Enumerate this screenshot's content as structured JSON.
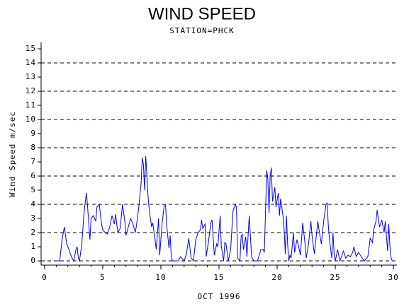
{
  "chart_data": {
    "type": "line",
    "title": "WIND SPEED",
    "subtitle": "STATION=PHCK",
    "y_label": "Wind Speed m/sec",
    "x_label": "OCT 1996",
    "color": "#0000ff",
    "xlim": [
      -0.3,
      30.3
    ],
    "xticks": [
      0,
      5,
      10,
      15,
      20,
      25,
      30
    ],
    "xminorticks": [
      0,
      1,
      2,
      3,
      4,
      5,
      6,
      7,
      8,
      9,
      10,
      11,
      12,
      13,
      14,
      15,
      16,
      17,
      18,
      19,
      20,
      21,
      22,
      23,
      24,
      25,
      26,
      27,
      28,
      29,
      30
    ],
    "ylim": [
      -0.3,
      15.45
    ],
    "yticks": [
      0,
      1,
      2,
      3,
      4,
      5,
      6,
      7,
      8,
      9,
      10,
      11,
      12,
      13,
      14,
      15
    ],
    "grid_lines": [
      0,
      2,
      4,
      6,
      8,
      10,
      12,
      14
    ],
    "grid_style": "dashed",
    "x": [
      1.0,
      1.3,
      1.5,
      1.7,
      1.9,
      2.1,
      2.3,
      2.5,
      2.7,
      2.8,
      2.9,
      3.0,
      3.2,
      3.4,
      3.6,
      3.7,
      3.9,
      4.0,
      4.2,
      4.4,
      4.5,
      4.7,
      4.9,
      5.0,
      5.2,
      5.4,
      5.6,
      5.8,
      6.0,
      6.1,
      6.3,
      6.5,
      6.7,
      6.9,
      7.0,
      7.2,
      7.4,
      7.6,
      7.8,
      7.9,
      8.1,
      8.3,
      8.4,
      8.5,
      8.6,
      8.7,
      8.8,
      8.9,
      9.0,
      9.2,
      9.3,
      9.5,
      9.6,
      9.8,
      9.9,
      10.1,
      10.3,
      10.4,
      10.5,
      10.7,
      10.8,
      10.9,
      11.0,
      11.5,
      11.7,
      12.0,
      12.2,
      12.4,
      12.6,
      12.8,
      13.0,
      13.2,
      13.4,
      13.5,
      13.6,
      13.8,
      13.9,
      14.1,
      14.3,
      14.4,
      14.6,
      14.8,
      14.9,
      15.1,
      15.2,
      15.4,
      15.5,
      15.6,
      15.8,
      16.0,
      16.2,
      16.4,
      16.5,
      16.6,
      16.8,
      16.9,
      17.0,
      17.1,
      17.3,
      17.4,
      17.6,
      17.8,
      18.0,
      18.3,
      18.5,
      18.6,
      18.8,
      18.9,
      19.0,
      19.1,
      19.2,
      19.3,
      19.4,
      19.5,
      19.6,
      19.8,
      19.9,
      20.1,
      20.2,
      20.3,
      20.5,
      20.6,
      20.7,
      20.8,
      20.9,
      21.0,
      21.1,
      21.2,
      21.4,
      21.5,
      21.7,
      21.8,
      22.0,
      22.2,
      22.4,
      22.5,
      22.7,
      22.9,
      23.0,
      23.2,
      23.5,
      23.6,
      23.8,
      24.0,
      24.2,
      24.3,
      24.4,
      24.5,
      24.7,
      24.8,
      24.9,
      25.0,
      25.2,
      25.4,
      25.7,
      25.9,
      26.1,
      26.3,
      26.5,
      26.6,
      26.8,
      27.0,
      27.3,
      27.5,
      27.8,
      28.0,
      28.2,
      28.3,
      28.5,
      28.6,
      28.8,
      29.0,
      29.2,
      29.3,
      29.5,
      29.6,
      29.7,
      29.8,
      29.9,
      30.0
    ],
    "values": [
      0,
      0,
      1.5,
      2.4,
      1.2,
      0.8,
      0.3,
      0,
      0.8,
      1.0,
      0.2,
      0,
      1.2,
      3.5,
      4.8,
      3.8,
      1.5,
      3,
      3.2,
      2.8,
      3.8,
      4.0,
      2.6,
      2.2,
      2.0,
      1.9,
      2.4,
      3.2,
      2.6,
      3.3,
      2.0,
      2.3,
      4.0,
      2.8,
      1.8,
      2.4,
      3.0,
      2.6,
      2.0,
      2.5,
      3.8,
      5.5,
      7.3,
      6.8,
      5.0,
      7.4,
      6.0,
      4.5,
      3.6,
      2.4,
      2.7,
      1.5,
      0.8,
      3.0,
      0.4,
      2.6,
      4.0,
      4.0,
      2.5,
      0.9,
      1.8,
      0.2,
      0,
      0,
      0.3,
      0,
      0.5,
      1.6,
      0.2,
      0,
      1.5,
      2.0,
      2.2,
      2.9,
      2.3,
      2.6,
      0.3,
      1.4,
      2.7,
      2.9,
      0.4,
      1.2,
      1.0,
      3.2,
      1.0,
      0,
      1.3,
      1.2,
      0,
      0.8,
      3.5,
      4.0,
      3.8,
      0.2,
      0,
      1.7,
      1.9,
      0.8,
      1.7,
      0.3,
      3.2,
      0.3,
      0,
      0,
      0.5,
      0.8,
      0.8,
      0.6,
      3.5,
      6.4,
      5.8,
      3.4,
      6.0,
      6.6,
      4.2,
      5.2,
      3.8,
      4.8,
      3.2,
      4.4,
      3.2,
      2.2,
      0.5,
      3.2,
      1.2,
      0,
      0.4,
      0.2,
      2.0,
      0.6,
      1.5,
      1.2,
      0.4,
      2.7,
      1.2,
      0.2,
      1.2,
      2.8,
      1.8,
      0.5,
      2.8,
      2.2,
      1.2,
      2.8,
      4.0,
      4.1,
      2.5,
      1.5,
      0.2,
      2.0,
      0.5,
      0,
      0.8,
      0,
      0.7,
      0.2,
      0.4,
      0.3,
      0.6,
      1.0,
      0.3,
      0.6,
      0.2,
      0,
      0.3,
      1.6,
      1.3,
      2.2,
      2.8,
      3.6,
      2.4,
      2.9,
      2.0,
      2.8,
      0.7,
      2.6,
      1.0,
      0.2,
      0,
      0
    ]
  }
}
